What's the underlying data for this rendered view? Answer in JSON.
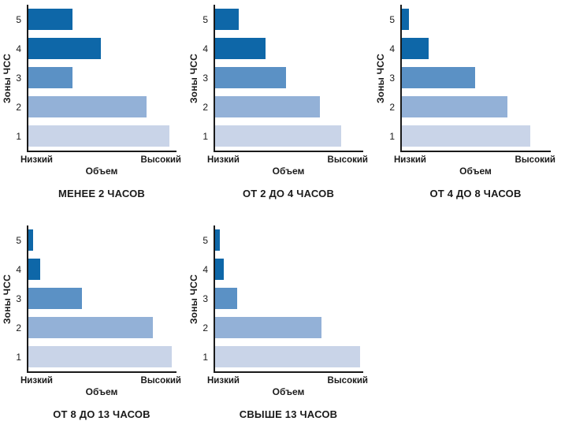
{
  "colors": {
    "zone5": "#0e67a8",
    "zone4": "#0e67a8",
    "zone3": "#5b91c5",
    "zone2": "#93b1d7",
    "zone1": "#c9d4e8",
    "axis": "#1a1a1a"
  },
  "chart_data": {
    "type": "bar",
    "orientation": "horizontal",
    "ylabel": "Зоны ЧСС",
    "xlabel": "Объем",
    "x_axis_ends": [
      "Низкий",
      "Высокий"
    ],
    "categories": [
      "5",
      "4",
      "3",
      "2",
      "1"
    ],
    "xlim": [
      0,
      100
    ],
    "grid": false,
    "bar_colors": [
      "#0e67a8",
      "#0e67a8",
      "#5b91c5",
      "#93b1d7",
      "#c9d4e8"
    ],
    "charts": [
      {
        "title": "МЕНЕЕ 2 ЧАСОВ",
        "values": [
          30,
          49,
          30,
          80,
          95
        ]
      },
      {
        "title": "ОТ 2 ДО 4 ЧАСОВ",
        "values": [
          16,
          34,
          48,
          71,
          85
        ]
      },
      {
        "title": "ОТ 4 ДО 8 ЧАСОВ",
        "values": [
          5,
          18,
          49,
          71,
          86
        ]
      },
      {
        "title": "ОТ 8 ДО 13 ЧАСОВ",
        "values": [
          3,
          8,
          36,
          84,
          97
        ]
      },
      {
        "title": "СВЫШЕ 13 ЧАСОВ",
        "values": [
          3,
          6,
          15,
          72,
          98
        ]
      }
    ]
  }
}
